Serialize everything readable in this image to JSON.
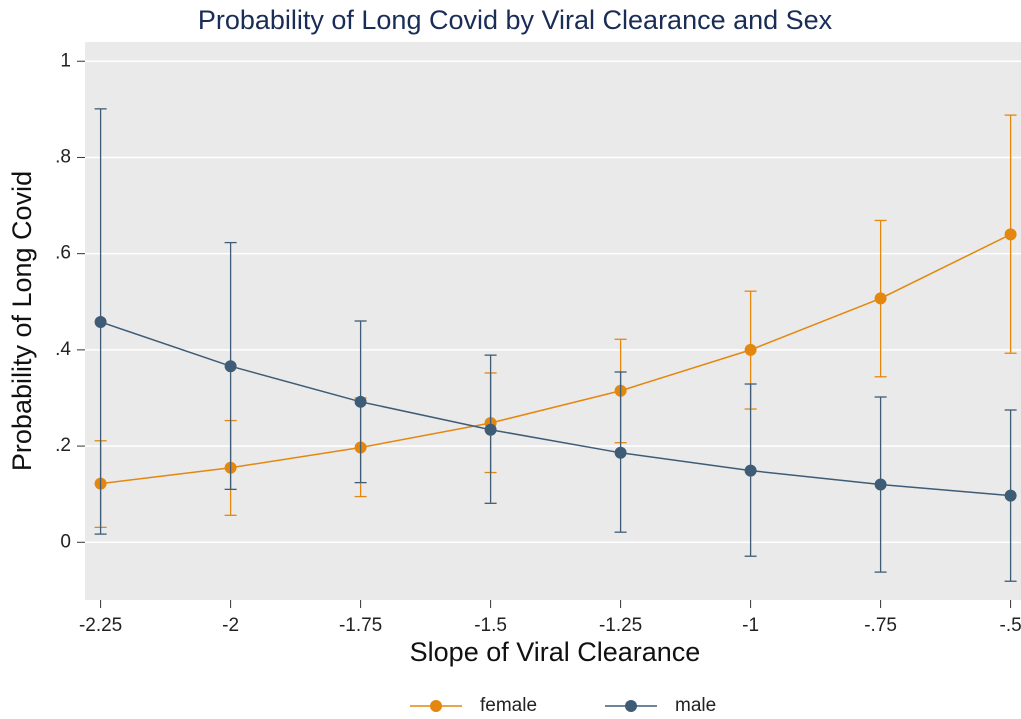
{
  "chart_data": {
    "type": "line",
    "title": "Probability of Long Covid by Viral Clearance and Sex",
    "x_label": "Slope of Viral Clearance",
    "y_label": "Probability of Long Covid",
    "x": [
      -2.25,
      -2,
      -1.75,
      -1.5,
      -1.25,
      -1,
      -0.75,
      -0.5
    ],
    "series": [
      {
        "name": "female",
        "color": "#e4870f",
        "values": [
          0.122,
          0.155,
          0.197,
          0.248,
          0.315,
          0.4,
          0.507,
          0.64
        ],
        "lower": [
          0.031,
          0.056,
          0.095,
          0.145,
          0.207,
          0.277,
          0.344,
          0.393
        ],
        "upper": [
          0.211,
          0.253,
          0.3,
          0.352,
          0.422,
          0.522,
          0.669,
          0.888
        ]
      },
      {
        "name": "male",
        "color": "#3e5c76",
        "values": [
          0.458,
          0.366,
          0.292,
          0.234,
          0.186,
          0.149,
          0.12,
          0.097
        ],
        "lower": [
          0.017,
          0.11,
          0.124,
          0.081,
          0.021,
          -0.029,
          -0.062,
          -0.081
        ],
        "upper": [
          0.901,
          0.623,
          0.46,
          0.389,
          0.354,
          0.329,
          0.302,
          0.275
        ]
      }
    ],
    "xlim": [
      -2.28,
      -0.48
    ],
    "ylim": [
      -0.12,
      1.04
    ],
    "xticks": [
      {
        "value": -2.25,
        "label": "-2.25"
      },
      -2,
      {
        "value": -1.75,
        "label": "-1.75"
      },
      {
        "value": -1.5,
        "label": "-1.5"
      },
      {
        "value": -1.25,
        "label": "-1.25"
      },
      -1,
      {
        "value": -0.75,
        "label": "-.75"
      },
      {
        "value": -0.5,
        "label": "-.5"
      }
    ],
    "yticks": [
      0,
      {
        "value": 0.2,
        "label": ".2"
      },
      {
        "value": 0.4,
        "label": ".4"
      },
      {
        "value": 0.6,
        "label": ".6"
      },
      {
        "value": 0.8,
        "label": ".8"
      },
      1
    ],
    "grid": true,
    "legend": "bottom"
  }
}
